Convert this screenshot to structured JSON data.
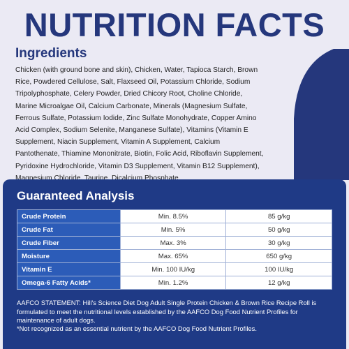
{
  "header": {
    "title": "NUTRITION FACTS"
  },
  "ingredients": {
    "heading": "Ingredients",
    "text": "Chicken (with ground bone and skin), Chicken, Water, Tapioca Starch, Brown Rice, Powdered Cellulose, Salt, Flaxseed Oil, Potassium Chloride, Sodium Tripolyphosphate, Celery Powder, Dried Chicory Root, Choline Chloride, Marine Microalgae Oil, Calcium Carbonate, Minerals (Magnesium Sulfate, Ferrous Sulfate, Potassium Iodide, Zinc Sulfate Monohydrate, Copper Amino Acid Complex, Sodium Selenite, Manganese Sulfate), Vitamins (Vitamin E Supplement, Niacin Supplement, Vitamin A Supplement, Calcium Pantothenate, Thiamine Mononitrate, Biotin, Folic Acid, Riboflavin Supplement, Pyridoxine Hydrochloride, Vitamin D3 Supplement, Vitamin B12 Supplement), Magnesium Chloride, Taurine, Dicalcium Phosphate."
  },
  "analysis": {
    "heading": "Guaranteed Analysis",
    "rows": [
      [
        "Crude Protein",
        "Min. 8.5%",
        "85 g/kg"
      ],
      [
        "Crude Fat",
        "Min. 5%",
        "50 g/kg"
      ],
      [
        "Crude Fiber",
        "Max. 3%",
        "30 g/kg"
      ],
      [
        "Moisture",
        "Max. 65%",
        "650 g/kg"
      ],
      [
        "Vitamin E",
        "Min. 100 IU/kg",
        "100 IU/kg"
      ],
      [
        "Omega-6 Fatty Acids*",
        "Min. 1.2%",
        "12 g/kg"
      ]
    ],
    "statement": "AAFCO STATEMENT: Hill's Science Diet Dog Adult Single Protein Chicken & Brown Rice Recipe Roll is formulated to meet the nutritional levels established by the AAFCO Dog Food Nutrient Profiles for maintenance of adult dogs.",
    "footnote": "*Not recognized as an essential nutrient by the AAFCO Dog Food Nutrient Profiles."
  }
}
